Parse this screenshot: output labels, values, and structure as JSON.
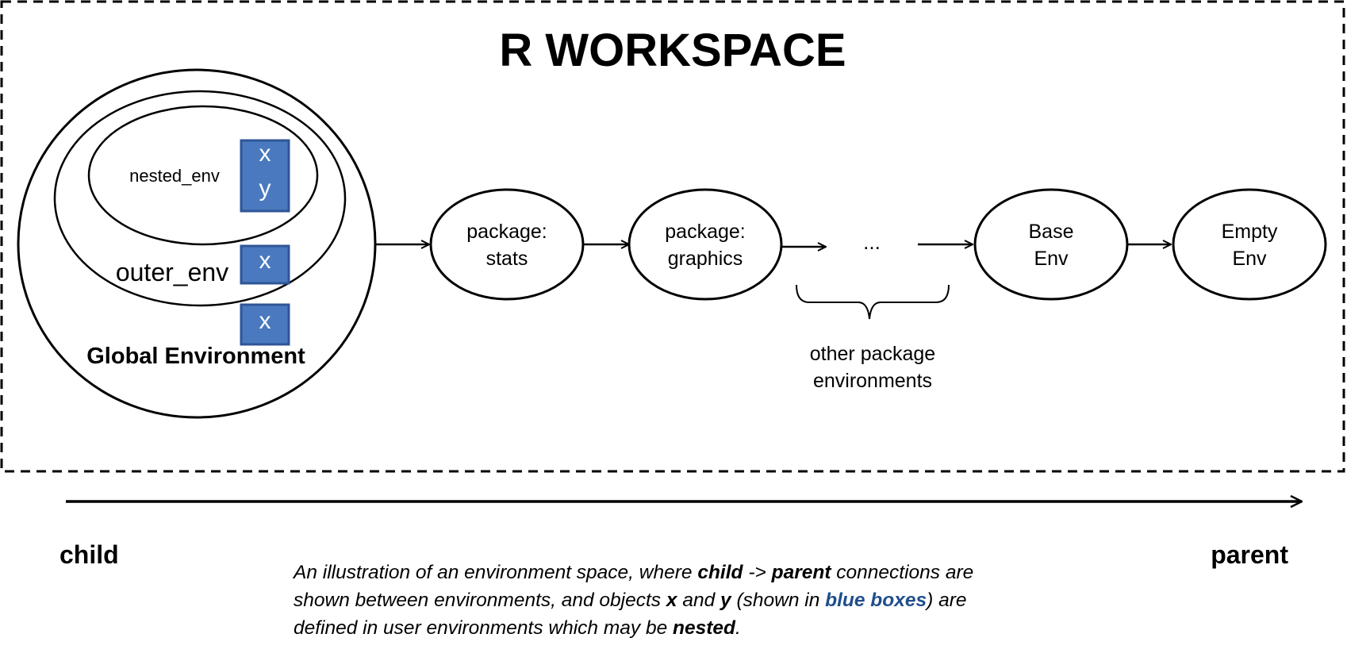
{
  "title": "R WORKSPACE",
  "global": {
    "label": "Global Environment",
    "objects": [
      "x"
    ]
  },
  "outer": {
    "label": "outer_env",
    "objects": [
      "x"
    ]
  },
  "nested": {
    "label": "nested_env",
    "objects": [
      "x",
      "y"
    ]
  },
  "chain": {
    "stats": [
      "package:",
      "stats"
    ],
    "graphics": [
      "package:",
      "graphics"
    ],
    "ellipsis": "...",
    "base": [
      "Base",
      "Env"
    ],
    "empty": [
      "Empty",
      "Env"
    ]
  },
  "brace_label": [
    "other package",
    "environments"
  ],
  "axis": {
    "left": "child",
    "right": "parent"
  },
  "caption": {
    "s1": "An illustration of an environment space, where ",
    "child": "child",
    "s2": " -> ",
    "parent": "parent",
    "s3": " connections are shown between environments, and objects ",
    "x": "x",
    "s4": " and ",
    "y": "y",
    "s5": " (shown in ",
    "blue": "blue boxes",
    "s6": ") are defined in user environments which may be ",
    "nested": "nested",
    "s7": "."
  },
  "colors": {
    "object_box": "#4a79bf",
    "object_box_border": "#2f5597",
    "highlight": "#1f4e8c"
  }
}
